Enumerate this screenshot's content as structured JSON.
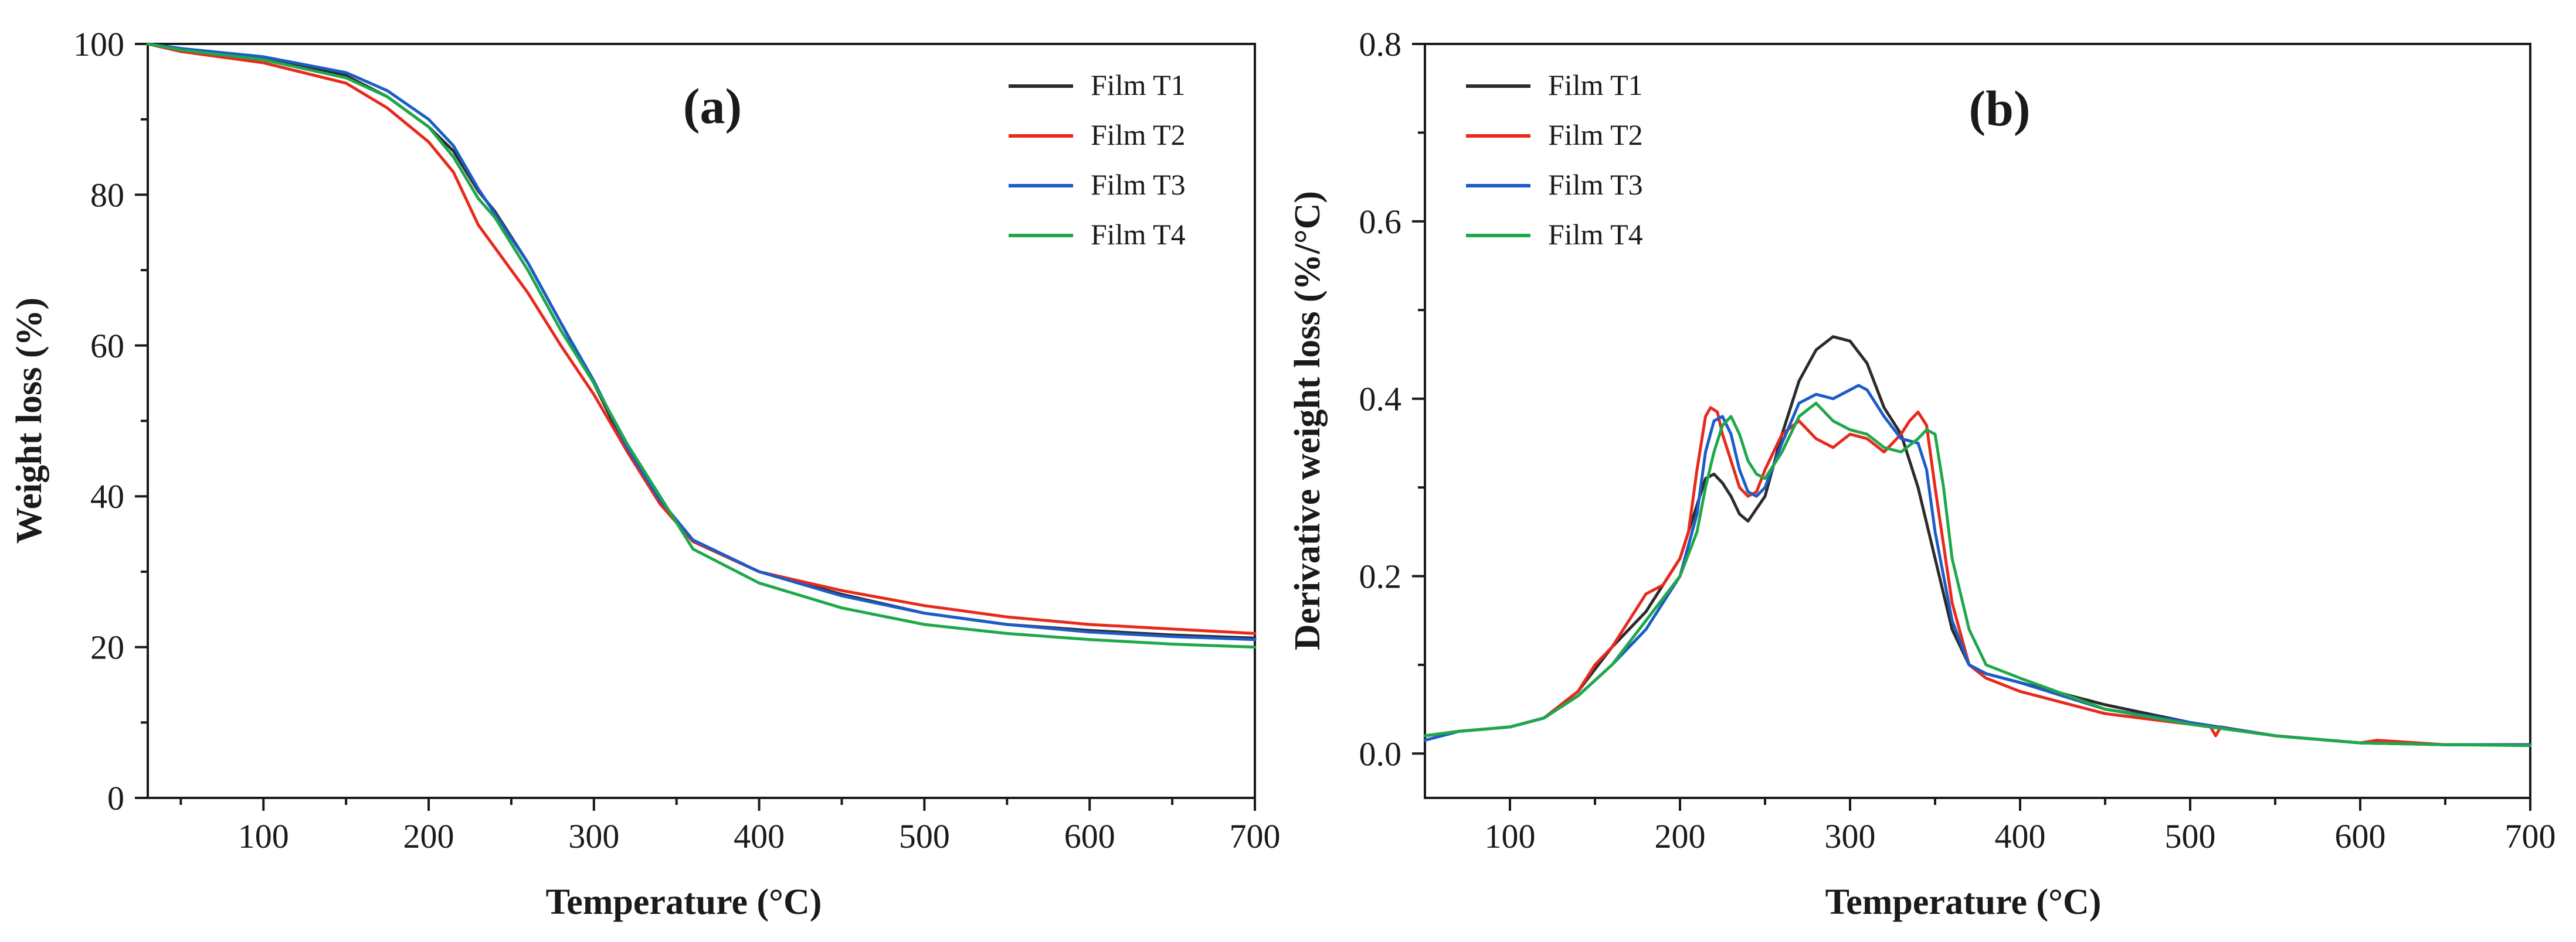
{
  "chart_data": [
    {
      "id": "a",
      "type": "line",
      "panel_label": "(a)",
      "xlabel": "Temperature (°C)",
      "ylabel": "Weight loss (%)",
      "xlim": [
        30,
        700
      ],
      "ylim": [
        0,
        100
      ],
      "xticks": [
        100,
        200,
        300,
        400,
        500,
        600,
        700
      ],
      "yticks": [
        0,
        20,
        40,
        60,
        80,
        100
      ],
      "legend_position": "top-right",
      "series": [
        {
          "name": "Film T1",
          "color": "#2b2b2b",
          "x": [
            30,
            50,
            100,
            150,
            175,
            200,
            215,
            230,
            240,
            260,
            280,
            300,
            320,
            340,
            360,
            400,
            450,
            500,
            550,
            600,
            650,
            700
          ],
          "y": [
            100,
            99.3,
            98.2,
            95.8,
            93,
            89,
            85.8,
            80.5,
            77.8,
            71,
            63,
            55,
            46,
            39,
            34,
            30,
            27,
            24.5,
            23,
            22.2,
            21.6,
            21.2
          ]
        },
        {
          "name": "Film T2",
          "color": "#e8291c",
          "x": [
            30,
            50,
            100,
            150,
            175,
            200,
            215,
            230,
            240,
            260,
            280,
            300,
            320,
            340,
            360,
            400,
            450,
            500,
            550,
            600,
            650,
            700
          ],
          "y": [
            100,
            99,
            97.5,
            94.8,
            91.5,
            87,
            83,
            76,
            73,
            67,
            60,
            53.5,
            46,
            39,
            34,
            30,
            27.5,
            25.5,
            24,
            23,
            22.4,
            21.8
          ]
        },
        {
          "name": "Film T3",
          "color": "#1c5cc8",
          "x": [
            30,
            50,
            100,
            150,
            175,
            200,
            215,
            230,
            240,
            260,
            280,
            300,
            320,
            340,
            360,
            400,
            450,
            500,
            550,
            600,
            650,
            700
          ],
          "y": [
            100,
            99.4,
            98.3,
            96.2,
            93.8,
            90,
            86.5,
            80.8,
            77.5,
            71,
            63,
            55.3,
            46.5,
            39.5,
            34.2,
            30,
            26.8,
            24.5,
            23,
            22,
            21.4,
            21
          ]
        },
        {
          "name": "Film T4",
          "color": "#1fa84a",
          "x": [
            30,
            50,
            100,
            150,
            175,
            200,
            215,
            230,
            240,
            260,
            280,
            300,
            320,
            340,
            360,
            400,
            450,
            500,
            550,
            600,
            650,
            700
          ],
          "y": [
            100,
            99.2,
            97.9,
            95.5,
            93,
            89,
            85,
            79.5,
            77,
            70,
            62,
            55,
            47,
            40,
            33,
            28.5,
            25.2,
            23,
            21.8,
            21,
            20.4,
            20
          ]
        }
      ]
    },
    {
      "id": "b",
      "type": "line",
      "panel_label": "(b)",
      "xlabel": "Temperature (°C)",
      "ylabel": "Derivative weight loss (%/°C)",
      "xlim": [
        50,
        700
      ],
      "ylim": [
        -0.05,
        0.8
      ],
      "xticks": [
        100,
        200,
        300,
        400,
        500,
        600,
        700
      ],
      "yticks": [
        0.0,
        0.2,
        0.4,
        0.6,
        0.8
      ],
      "ytick_labels": [
        "0.0",
        "0.2",
        "0.4",
        "0.6",
        "0.8"
      ],
      "legend_position": "top-left",
      "series": [
        {
          "name": "Film T1",
          "color": "#2b2b2b",
          "x": [
            50,
            70,
            100,
            120,
            140,
            160,
            180,
            200,
            210,
            215,
            220,
            225,
            230,
            235,
            240,
            250,
            260,
            270,
            280,
            290,
            300,
            310,
            320,
            330,
            340,
            350,
            360,
            370,
            380,
            400,
            450,
            500,
            550,
            600,
            650,
            700
          ],
          "y": [
            0.02,
            0.025,
            0.03,
            0.04,
            0.07,
            0.12,
            0.16,
            0.22,
            0.28,
            0.31,
            0.315,
            0.305,
            0.29,
            0.27,
            0.262,
            0.29,
            0.36,
            0.42,
            0.455,
            0.47,
            0.465,
            0.44,
            0.39,
            0.36,
            0.3,
            0.22,
            0.14,
            0.1,
            0.09,
            0.08,
            0.055,
            0.035,
            0.02,
            0.012,
            0.01,
            0.01
          ]
        },
        {
          "name": "Film T2",
          "color": "#e8291c",
          "x": [
            50,
            70,
            100,
            120,
            140,
            150,
            160,
            170,
            180,
            190,
            200,
            205,
            210,
            215,
            218,
            222,
            225,
            230,
            235,
            240,
            245,
            250,
            260,
            270,
            280,
            290,
            300,
            310,
            320,
            330,
            335,
            340,
            345,
            350,
            360,
            370,
            380,
            400,
            450,
            500,
            512,
            515,
            518,
            550,
            600,
            610,
            650,
            700
          ],
          "y": [
            0.02,
            0.025,
            0.03,
            0.04,
            0.07,
            0.1,
            0.12,
            0.15,
            0.18,
            0.19,
            0.22,
            0.25,
            0.32,
            0.38,
            0.39,
            0.385,
            0.36,
            0.33,
            0.3,
            0.29,
            0.295,
            0.32,
            0.36,
            0.375,
            0.355,
            0.345,
            0.36,
            0.355,
            0.34,
            0.36,
            0.375,
            0.385,
            0.37,
            0.3,
            0.17,
            0.1,
            0.085,
            0.07,
            0.045,
            0.033,
            0.03,
            0.02,
            0.03,
            0.02,
            0.012,
            0.015,
            0.01,
            0.01
          ]
        },
        {
          "name": "Film T3",
          "color": "#1c5cc8",
          "x": [
            50,
            70,
            100,
            120,
            140,
            160,
            180,
            200,
            210,
            215,
            220,
            225,
            230,
            235,
            240,
            245,
            250,
            260,
            270,
            280,
            290,
            300,
            305,
            310,
            320,
            330,
            340,
            345,
            350,
            360,
            370,
            380,
            400,
            450,
            500,
            550,
            600,
            650,
            700
          ],
          "y": [
            0.015,
            0.025,
            0.03,
            0.04,
            0.065,
            0.1,
            0.14,
            0.2,
            0.27,
            0.34,
            0.375,
            0.38,
            0.36,
            0.32,
            0.295,
            0.29,
            0.3,
            0.35,
            0.395,
            0.405,
            0.4,
            0.41,
            0.415,
            0.41,
            0.38,
            0.355,
            0.35,
            0.32,
            0.25,
            0.15,
            0.1,
            0.09,
            0.08,
            0.05,
            0.035,
            0.02,
            0.012,
            0.01,
            0.01
          ]
        },
        {
          "name": "Film T4",
          "color": "#1fa84a",
          "x": [
            50,
            70,
            100,
            120,
            140,
            160,
            180,
            200,
            210,
            215,
            220,
            225,
            230,
            235,
            240,
            245,
            250,
            260,
            270,
            280,
            290,
            300,
            310,
            320,
            330,
            340,
            345,
            350,
            355,
            360,
            370,
            380,
            400,
            450,
            500,
            550,
            600,
            650,
            700
          ],
          "y": [
            0.02,
            0.025,
            0.03,
            0.04,
            0.065,
            0.1,
            0.15,
            0.2,
            0.25,
            0.3,
            0.34,
            0.37,
            0.38,
            0.36,
            0.33,
            0.315,
            0.31,
            0.34,
            0.38,
            0.395,
            0.375,
            0.365,
            0.36,
            0.345,
            0.34,
            0.355,
            0.365,
            0.36,
            0.3,
            0.22,
            0.14,
            0.1,
            0.085,
            0.05,
            0.033,
            0.02,
            0.012,
            0.01,
            0.009
          ]
        }
      ]
    }
  ]
}
